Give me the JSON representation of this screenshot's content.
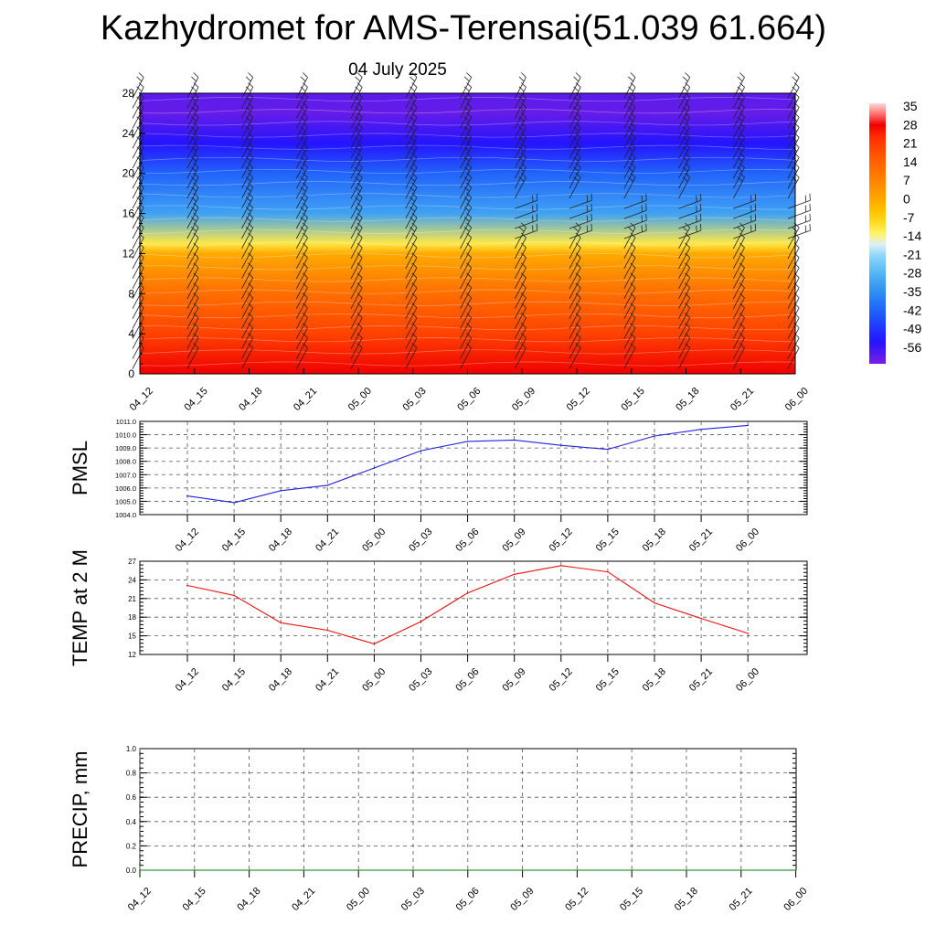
{
  "title": "Kazhydromet for AMS-Terensai(51.039 61.664)",
  "subtitle": "04 July 2025",
  "colors": {
    "pmsl_line": "#2222dd",
    "temp_line": "#ee1111",
    "precip_line": "#117711",
    "grid": "#555555",
    "axis": "#000000"
  },
  "chart_data": [
    {
      "type": "heatmap",
      "name": "Vertical temperature cross-section with wind barbs",
      "ylabel": "",
      "ylim": [
        0,
        28
      ],
      "yticks": [
        "0",
        "4",
        "8",
        "12",
        "16",
        "20",
        "24",
        "28"
      ],
      "x": [
        "04_12",
        "04_15",
        "04_18",
        "04_21",
        "05_00",
        "05_03",
        "05_06",
        "05_09",
        "05_12",
        "05_15",
        "05_18",
        "05_21",
        "06_00"
      ],
      "colorbar": {
        "labels": [
          "35",
          "28",
          "21",
          "14",
          "7",
          "0",
          "-7",
          "-14",
          "-21",
          "-28",
          "-35",
          "-42",
          "-49",
          "-56"
        ],
        "range": [
          -60,
          36
        ]
      },
      "level_temps": [
        {
          "level": 0,
          "t": 28
        },
        {
          "level": 4,
          "t": 20
        },
        {
          "level": 8,
          "t": 12
        },
        {
          "level": 12,
          "t": 0
        },
        {
          "level": 13,
          "t": -10
        },
        {
          "level": 16,
          "t": -30
        },
        {
          "level": 20,
          "t": -40
        },
        {
          "level": 23,
          "t": -52
        },
        {
          "level": 26,
          "t": -58
        },
        {
          "level": 28,
          "t": -57
        }
      ]
    },
    {
      "type": "line",
      "ylabel": "PMSL",
      "ylim": [
        1004,
        1011
      ],
      "yticks": [
        "1004.0",
        "1005.0",
        "1006.0",
        "1007.0",
        "1008.0",
        "1009.0",
        "1010.0",
        "1011.0"
      ],
      "x": [
        "04_12",
        "04_15",
        "04_18",
        "04_21",
        "05_00",
        "05_03",
        "05_06",
        "05_09",
        "05_12",
        "05_15",
        "05_18",
        "05_21",
        "06_00"
      ],
      "values": [
        1005.4,
        1004.9,
        1005.8,
        1006.2,
        1007.5,
        1008.8,
        1009.5,
        1009.6,
        1009.2,
        1008.9,
        1009.9,
        1010.4,
        1010.7
      ]
    },
    {
      "type": "line",
      "ylabel": "TEMP at 2 M",
      "ylim": [
        12,
        27
      ],
      "yticks": [
        "12",
        "15",
        "18",
        "21",
        "24",
        "27"
      ],
      "x": [
        "04_12",
        "04_15",
        "04_18",
        "04_21",
        "05_00",
        "05_03",
        "05_06",
        "05_09",
        "05_12",
        "05_15",
        "05_18",
        "05_21",
        "06_00"
      ],
      "values": [
        23.1,
        21.5,
        17.1,
        15.9,
        13.7,
        17.3,
        21.9,
        24.9,
        26.3,
        25.3,
        20.3,
        17.8,
        15.4
      ]
    },
    {
      "type": "line",
      "ylabel": "PRECIP, mm",
      "ylim": [
        0,
        1
      ],
      "yticks": [
        "0.0",
        "0.2",
        "0.4",
        "0.6",
        "0.8",
        "1.0"
      ],
      "x": [
        "04_12",
        "04_15",
        "04_18",
        "04_21",
        "05_00",
        "05_03",
        "05_06",
        "05_09",
        "05_12",
        "05_15",
        "05_18",
        "05_21",
        "06_00"
      ],
      "values": [
        0,
        0,
        0,
        0,
        0,
        0,
        0,
        0,
        0,
        0,
        0,
        0,
        0
      ]
    }
  ]
}
